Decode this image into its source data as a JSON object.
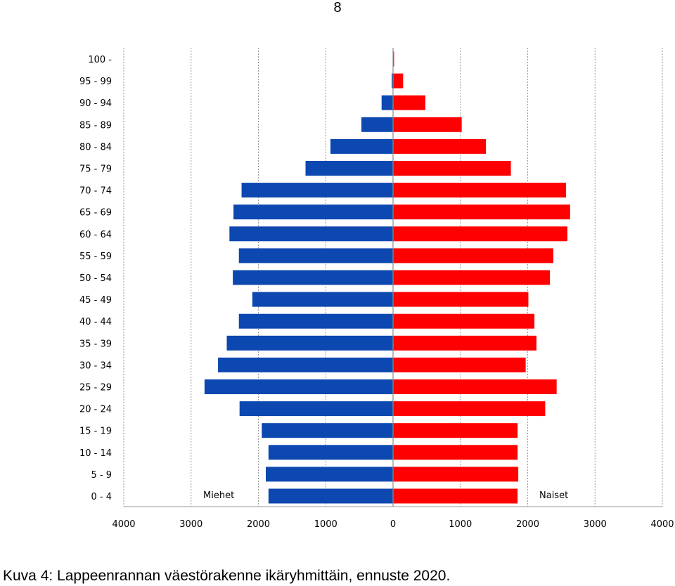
{
  "page_number": "8",
  "caption": "Kuva 4: Lappeenrannan väestörakenne ikäryhmittäin, ennuste 2020.",
  "chart_data": {
    "type": "bar",
    "orientation": "horizontal",
    "title": "",
    "categories": [
      "100 -",
      "95 - 99",
      "90 - 94",
      "85 - 89",
      "80 - 84",
      "75 - 79",
      "70 - 74",
      "65 - 69",
      "60 - 64",
      "55 - 59",
      "50 - 54",
      "45 - 49",
      "40 - 44",
      "35 - 39",
      "30 - 34",
      "25 - 29",
      "20 - 24",
      "15 - 19",
      "10 - 14",
      "5 - 9",
      "0 - 4"
    ],
    "series": [
      {
        "name": "Miehet",
        "color": "#0d47b0",
        "values": [
          5,
          20,
          170,
          470,
          930,
          1300,
          2250,
          2370,
          2430,
          2290,
          2380,
          2090,
          2290,
          2470,
          2600,
          2800,
          2280,
          1950,
          1850,
          1890,
          1850
        ]
      },
      {
        "name": "Naiset",
        "color": "#ff0000",
        "values": [
          15,
          150,
          480,
          1020,
          1380,
          1750,
          2570,
          2630,
          2590,
          2380,
          2330,
          2010,
          2100,
          2130,
          1970,
          2430,
          2260,
          1850,
          1850,
          1860,
          1850
        ]
      }
    ],
    "x_ticks": [
      "4000",
      "3000",
      "2000",
      "1000",
      "0",
      "1000",
      "2000",
      "3000",
      "4000"
    ],
    "xlim": [
      -4000,
      4000
    ],
    "grid": true
  }
}
